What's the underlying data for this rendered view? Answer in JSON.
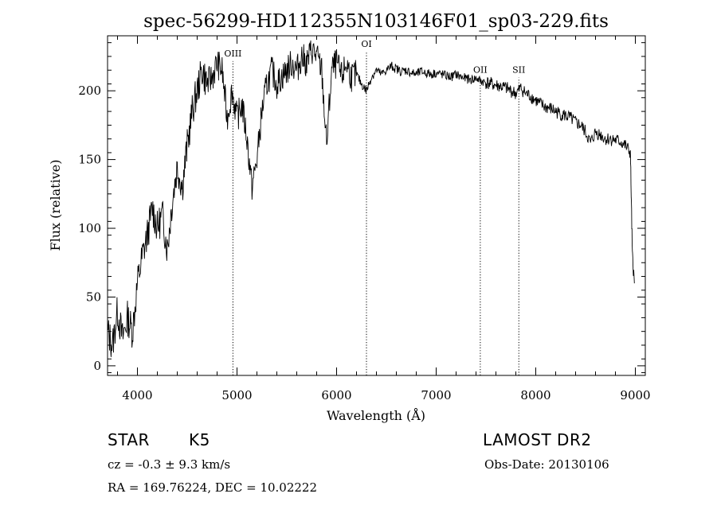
{
  "chart_data": {
    "type": "line",
    "title": "spec-56299-HD112355N103146F01_sp03-229.fits",
    "xlabel": "Wavelength (Å)",
    "ylabel": "Flux (relative)",
    "xlim": [
      3700,
      9100
    ],
    "ylim": [
      -7,
      240
    ],
    "x_ticks": [
      4000,
      5000,
      6000,
      7000,
      8000,
      9000
    ],
    "y_ticks": [
      0,
      50,
      100,
      150,
      200
    ],
    "x_tick_labels": [
      "4000",
      "5000",
      "6000",
      "7000",
      "8000",
      "9000"
    ],
    "y_tick_labels": [
      "0",
      "50",
      "100",
      "150",
      "200"
    ],
    "grid": false,
    "series": [
      {
        "x": [
          3700,
          3750,
          3800,
          3850,
          3900,
          3950,
          4000,
          4050,
          4100,
          4150,
          4200,
          4250,
          4300,
          4350,
          4400,
          4450,
          4500,
          4550,
          4600,
          4650,
          4700,
          4750,
          4800,
          4850,
          4900,
          4950,
          5000,
          5050,
          5100,
          5150,
          5200,
          5250,
          5300,
          5350,
          5400,
          5450,
          5500,
          5550,
          5600,
          5650,
          5700,
          5750,
          5800,
          5850,
          5900,
          5950,
          6000,
          6050,
          6100,
          6150,
          6200,
          6250,
          6300,
          6350,
          6400,
          6450,
          6500,
          6550,
          6600,
          6650,
          6700,
          6750,
          6800,
          6850,
          6900,
          6950,
          7000,
          7050,
          7100,
          7150,
          7200,
          7250,
          7300,
          7350,
          7400,
          7450,
          7500,
          7550,
          7600,
          7650,
          7700,
          7750,
          7800,
          7850,
          7900,
          7950,
          8000,
          8050,
          8100,
          8150,
          8200,
          8250,
          8300,
          8350,
          8400,
          8450,
          8500,
          8550,
          8600,
          8650,
          8700,
          8750,
          8800,
          8850,
          8900,
          8950,
          8970,
          8990
        ],
        "y": [
          25,
          15,
          40,
          20,
          35,
          25,
          60,
          80,
          95,
          115,
          100,
          110,
          85,
          120,
          145,
          130,
          160,
          185,
          200,
          215,
          205,
          210,
          220,
          215,
          180,
          200,
          180,
          190,
          165,
          130,
          150,
          185,
          205,
          215,
          205,
          210,
          215,
          220,
          215,
          225,
          220,
          230,
          225,
          215,
          160,
          215,
          220,
          210,
          220,
          210,
          212,
          205,
          200,
          210,
          215,
          212,
          215,
          218,
          216,
          214,
          215,
          213,
          212,
          214,
          213,
          212,
          213,
          212,
          211,
          210,
          212,
          210,
          209,
          208,
          209,
          207,
          206,
          205,
          204,
          203,
          202,
          200,
          198,
          202,
          198,
          196,
          193,
          190,
          188,
          187,
          185,
          183,
          182,
          180,
          177,
          175,
          170,
          162,
          170,
          168,
          165,
          165,
          164,
          163,
          160,
          155,
          80,
          60
        ]
      }
    ],
    "annotations": [
      {
        "label": "OIII",
        "x": 4959,
        "y": 225
      },
      {
        "label": "OI",
        "x": 6300,
        "y": 232
      },
      {
        "label": "OII",
        "x": 7443,
        "y": 213
      },
      {
        "label": "SII",
        "x": 7830,
        "y": 213
      }
    ]
  },
  "info": {
    "class_label": "STAR",
    "subclass": "K5",
    "survey": "LAMOST DR2",
    "cz_line": "cz = -0.3 ± 9.3 km/s",
    "obs_date": "Obs-Date: 20130106",
    "coords": "RA = 169.76224, DEC =  10.02222"
  }
}
